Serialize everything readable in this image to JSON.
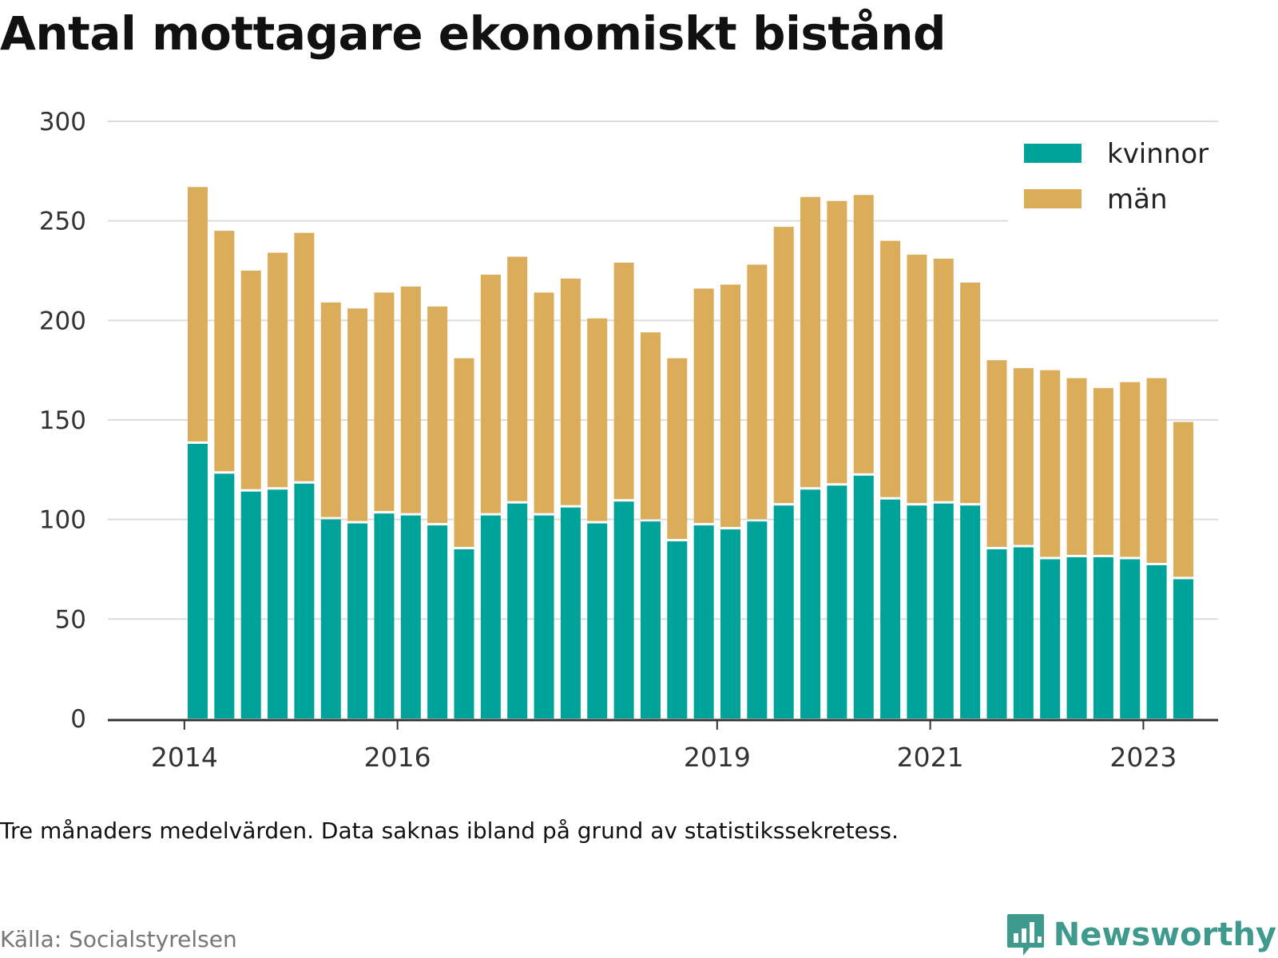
{
  "title": "Antal mottagare ekonomiskt bistånd",
  "note": "Tre månaders medelvärden. Data saknas ibland på grund av statistikssekretess.",
  "source": "Källa: Socialstyrelsen",
  "brand": "Newsworthy",
  "colors": {
    "kvinnor": "#00a39a",
    "man": "#dbac5a",
    "grid": "#dcdcdc",
    "axis": "#333333",
    "brand": "#3f9a8e"
  },
  "icons": {
    "brand": "bar-chart-speech-bubble-icon"
  },
  "chart_data": {
    "type": "bar",
    "stacked": true,
    "ylim": [
      0,
      300
    ],
    "yticks": [
      0,
      50,
      100,
      150,
      200,
      250,
      300
    ],
    "xticks": [
      {
        "label": "2014",
        "index": -0.5
      },
      {
        "label": "2016",
        "index": 7.5
      },
      {
        "label": "2019",
        "index": 19.5
      },
      {
        "label": "2021",
        "index": 27.5
      },
      {
        "label": "2023",
        "index": 35.5
      }
    ],
    "legend_position": "top-right",
    "grid": true,
    "series": [
      {
        "name": "kvinnor",
        "color": "#00a39a",
        "values": [
          138,
          123,
          114,
          115,
          118,
          100,
          98,
          103,
          102,
          97,
          85,
          102,
          108,
          102,
          106,
          98,
          109,
          99,
          89,
          97,
          95,
          99,
          107,
          115,
          117,
          122,
          110,
          107,
          108,
          107,
          85,
          86,
          80,
          81,
          81,
          80,
          77,
          70
        ]
      },
      {
        "name": "män",
        "color": "#dbac5a",
        "values": [
          129,
          122,
          111,
          119,
          126,
          109,
          108,
          111,
          115,
          110,
          96,
          121,
          124,
          112,
          115,
          103,
          120,
          95,
          92,
          119,
          123,
          129,
          140,
          147,
          143,
          141,
          130,
          126,
          123,
          112,
          95,
          90,
          95,
          90,
          85,
          89,
          94,
          79
        ]
      }
    ]
  }
}
